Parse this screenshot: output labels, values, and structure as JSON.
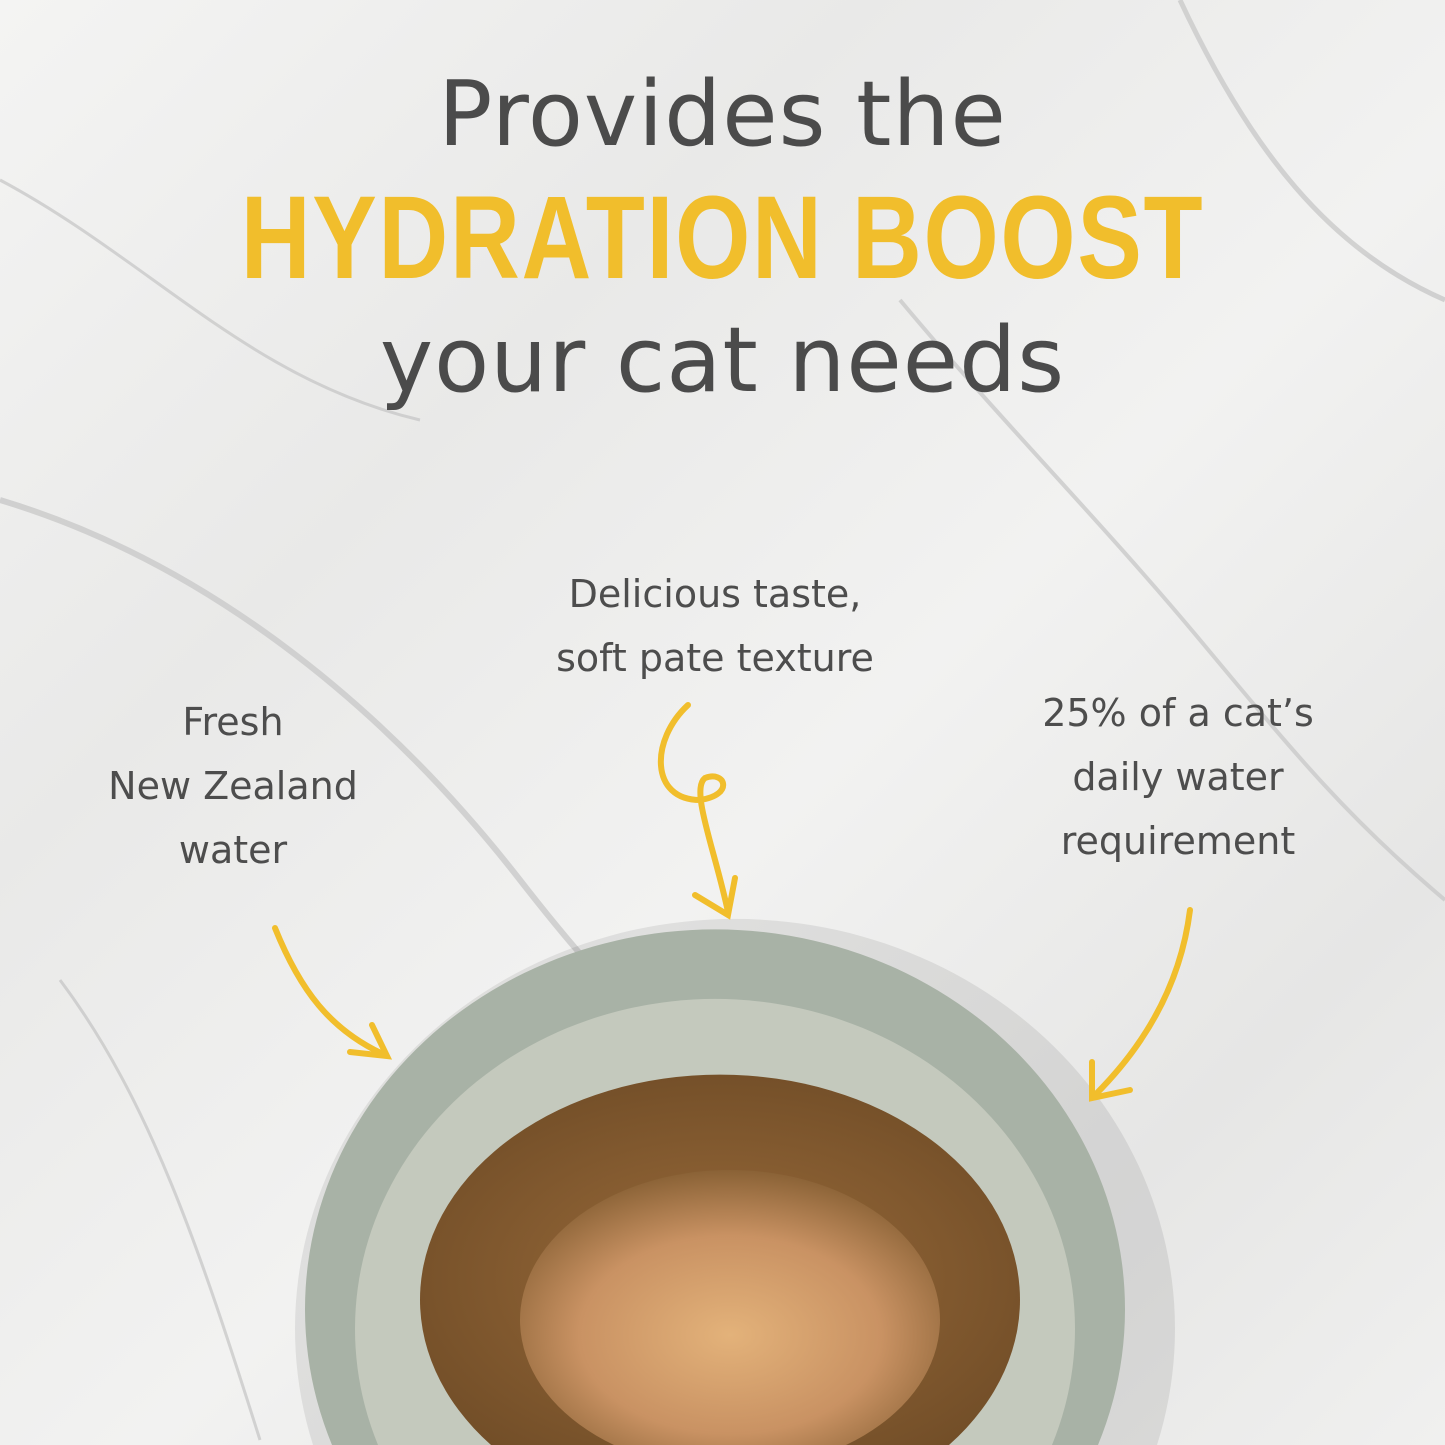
{
  "headline": {
    "line1": "Provides the",
    "line2": "HYDRATION BOOST",
    "line3": "your cat needs"
  },
  "callouts": {
    "center": [
      "Delicious taste,",
      "soft pate texture"
    ],
    "left": [
      "Fresh",
      "New Zealand",
      "water"
    ],
    "right": [
      "25% of a cat’s",
      "daily water",
      "requirement"
    ]
  },
  "colors": {
    "accent": "#f1be2c",
    "text": "#4b4b4b",
    "bowl": "#a8b2a6"
  }
}
